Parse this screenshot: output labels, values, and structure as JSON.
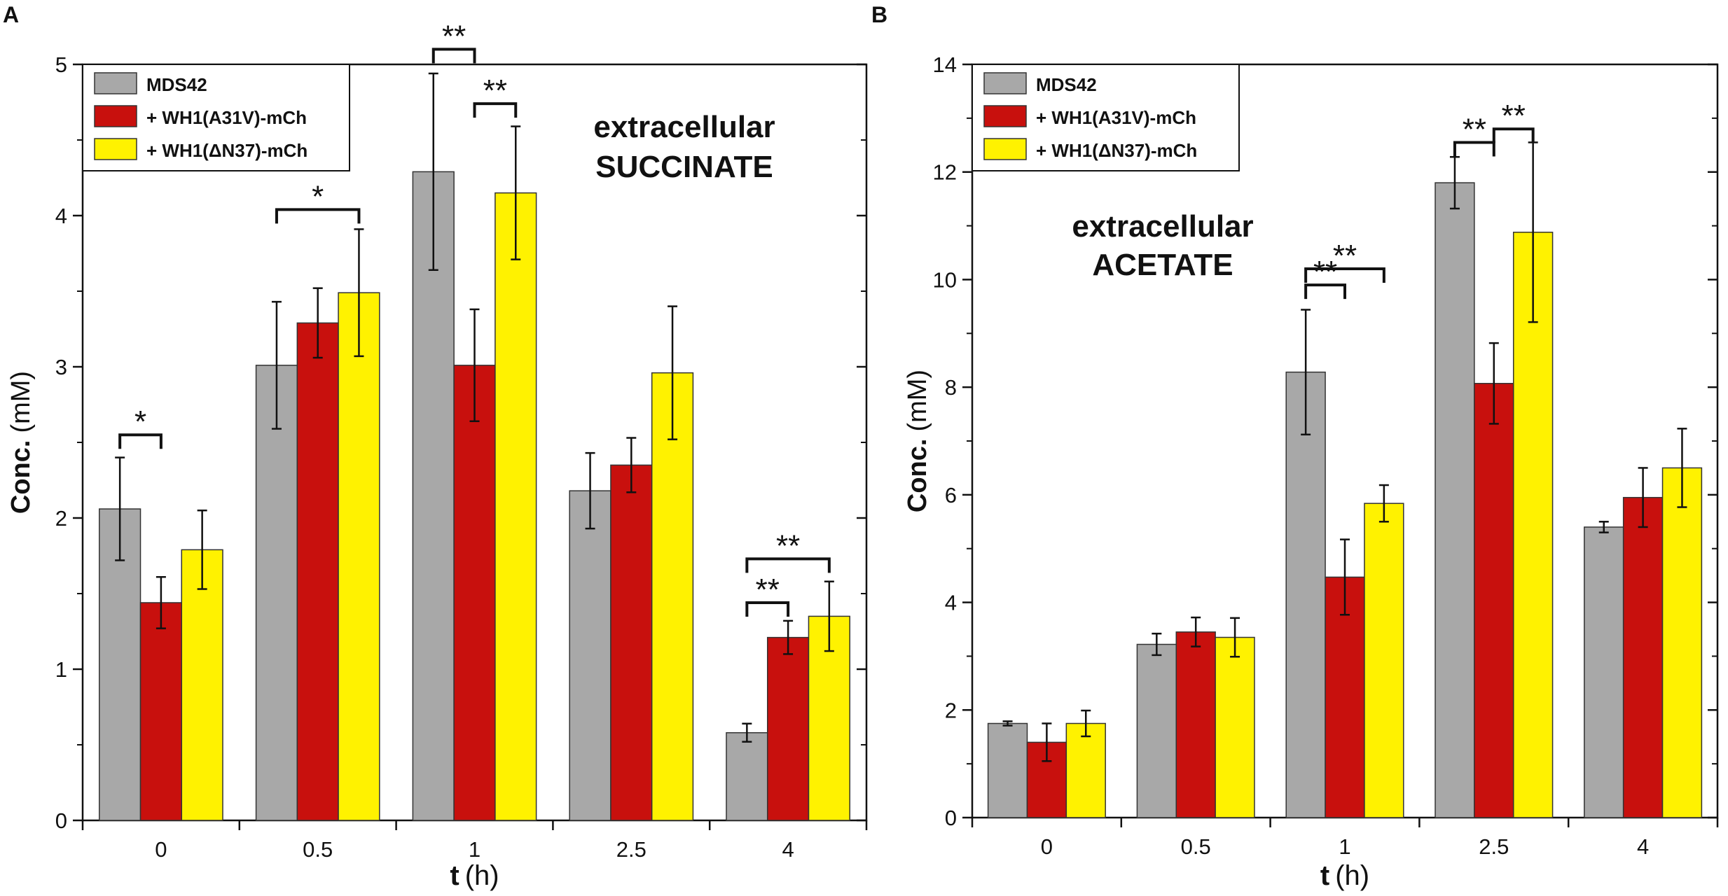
{
  "legend": {
    "entries": [
      "MDS42",
      "+ WH1(A31V)-mCh",
      "+ WH1(ΔN37)-mCh"
    ]
  },
  "colors": {
    "series": [
      "#a8a8a8",
      "#c8100d",
      "#fff200"
    ],
    "axis": "#111111"
  },
  "chart_data": [
    {
      "type": "bar",
      "panel_label": "A",
      "title_line1": "extracellular",
      "title_line2": "SUCCINATE",
      "xlabel_bold": "t",
      "xlabel_unit": "(h)",
      "ylabel_bold": "Conc.",
      "ylabel_unit": "(mM)",
      "ylim": [
        0,
        5
      ],
      "yticks": [
        "0",
        "1",
        "2",
        "3",
        "4",
        "5"
      ],
      "categories": [
        "0",
        "0.5",
        "1",
        "2.5",
        "4"
      ],
      "legend_position": "top-left",
      "series": [
        {
          "name": "MDS42",
          "values": [
            2.06,
            3.01,
            4.29,
            2.18,
            0.58
          ],
          "errors": [
            0.34,
            0.42,
            0.65,
            0.25,
            0.06
          ]
        },
        {
          "name": "+ WH1(A31V)-mCh",
          "values": [
            1.44,
            3.29,
            3.01,
            2.35,
            1.21
          ],
          "errors": [
            0.17,
            0.23,
            0.37,
            0.18,
            0.11
          ]
        },
        {
          "name": "+ WH1(ΔN37)-mCh",
          "values": [
            1.79,
            3.49,
            4.15,
            2.96,
            1.35
          ],
          "errors": [
            0.26,
            0.42,
            0.44,
            0.44,
            0.23
          ]
        }
      ],
      "significance": [
        {
          "category": 0,
          "from": 0,
          "to": 1,
          "label": "*",
          "y": 2.55
        },
        {
          "category": 1,
          "from": 0,
          "to": 2,
          "label": "*",
          "y": 4.04
        },
        {
          "category": 2,
          "from": 0,
          "to": 1,
          "label": "**",
          "y": 5.1
        },
        {
          "category": 2,
          "from": 1,
          "to": 2,
          "label": "**",
          "y": 4.74
        },
        {
          "category": 4,
          "from": 0,
          "to": 1,
          "label": "**",
          "y": 1.44
        },
        {
          "category": 4,
          "from": 0,
          "to": 2,
          "label": "**",
          "y": 1.73
        }
      ]
    },
    {
      "type": "bar",
      "panel_label": "B",
      "title_line1": "extracellular",
      "title_line2": "ACETATE",
      "xlabel_bold": "t",
      "xlabel_unit": "(h)",
      "ylabel_bold": "Conc.",
      "ylabel_unit": "(mM)",
      "ylim": [
        0,
        14
      ],
      "yticks": [
        "0",
        "2",
        "4",
        "6",
        "8",
        "10",
        "12",
        "14"
      ],
      "categories": [
        "0",
        "0.5",
        "1",
        "2.5",
        "4"
      ],
      "legend_position": "top-left",
      "series": [
        {
          "name": "MDS42",
          "values": [
            1.75,
            3.22,
            8.28,
            11.8,
            5.4
          ],
          "errors": [
            0.04,
            0.2,
            1.16,
            0.48,
            0.1
          ]
        },
        {
          "name": "+ WH1(A31V)-mCh",
          "values": [
            1.4,
            3.45,
            4.47,
            8.07,
            5.95
          ],
          "errors": [
            0.35,
            0.27,
            0.7,
            0.75,
            0.55
          ]
        },
        {
          "name": "+ WH1(ΔN37)-mCh",
          "values": [
            1.75,
            3.35,
            5.84,
            10.88,
            6.5
          ],
          "errors": [
            0.24,
            0.36,
            0.34,
            1.67,
            0.73
          ]
        }
      ],
      "significance": [
        {
          "category": 2,
          "from": 0,
          "to": 1,
          "label": "**",
          "y": 9.9
        },
        {
          "category": 2,
          "from": 0,
          "to": 2,
          "label": "**",
          "y": 10.2
        },
        {
          "category": 3,
          "from": 0,
          "to": 1,
          "label": "**",
          "y": 12.55
        },
        {
          "category": 3,
          "from": 1,
          "to": 2,
          "label": "**",
          "y": 12.8
        }
      ]
    }
  ]
}
